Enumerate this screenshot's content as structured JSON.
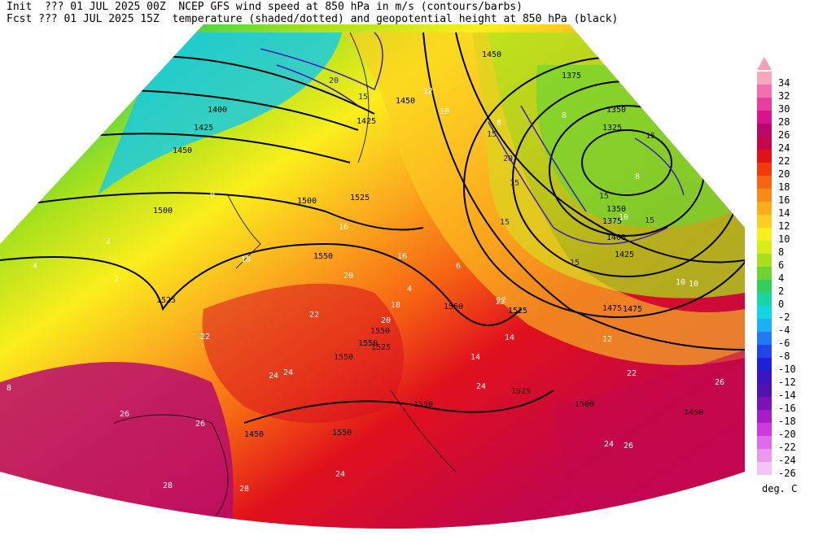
{
  "header": {
    "line1": "Init  ??? 01 JUL 2025 00Z  NCEP GFS wind speed at 850 hPa in m/s (contours/barbs)",
    "line2": "Fcst ??? 01 JUL 2025 15Z  temperature (shaded/dotted) and geopotential height at 850 hPa (black)"
  },
  "colorbar": {
    "units": "deg. C",
    "levels": [
      {
        "value": "34",
        "color": "#f7a8bd"
      },
      {
        "value": "32",
        "color": "#f26fb0"
      },
      {
        "value": "30",
        "color": "#e83e9e"
      },
      {
        "value": "28",
        "color": "#d8148a"
      },
      {
        "value": "26",
        "color": "#b90a6b"
      },
      {
        "value": "24",
        "color": "#c4064a"
      },
      {
        "value": "22",
        "color": "#e0101c"
      },
      {
        "value": "20",
        "color": "#f23a0a"
      },
      {
        "value": "18",
        "color": "#f76512"
      },
      {
        "value": "16",
        "color": "#fa8a18"
      },
      {
        "value": "14",
        "color": "#fbab1e"
      },
      {
        "value": "12",
        "color": "#fdcd22"
      },
      {
        "value": "10",
        "color": "#fbee1c"
      },
      {
        "value": "8",
        "color": "#d8ee1a"
      },
      {
        "value": "6",
        "color": "#a8e11c"
      },
      {
        "value": "4",
        "color": "#6fd431"
      },
      {
        "value": "2",
        "color": "#32d05a"
      },
      {
        "value": "0",
        "color": "#1ad6a5"
      },
      {
        "value": "-2",
        "color": "#12d7e2"
      },
      {
        "value": "-4",
        "color": "#1ab2f5"
      },
      {
        "value": "-6",
        "color": "#2179f4"
      },
      {
        "value": "-8",
        "color": "#1d46ed"
      },
      {
        "value": "-10",
        "color": "#2020d8"
      },
      {
        "value": "-12",
        "color": "#3a15c4"
      },
      {
        "value": "-14",
        "color": "#5212b0"
      },
      {
        "value": "-16",
        "color": "#7a12b5"
      },
      {
        "value": "-18",
        "color": "#a61dc6"
      },
      {
        "value": "-20",
        "color": "#cc3bde"
      },
      {
        "value": "-22",
        "color": "#e06ae9"
      },
      {
        "value": "-24",
        "color": "#ec98ef"
      },
      {
        "value": "-26",
        "color": "#f5c3f5"
      }
    ]
  },
  "map": {
    "height_labels": [
      {
        "text": "1400"
      },
      {
        "text": "1425"
      },
      {
        "text": "1450"
      },
      {
        "text": "1500"
      },
      {
        "text": "1525"
      },
      {
        "text": "1525"
      },
      {
        "text": "1550"
      },
      {
        "text": "1550"
      },
      {
        "text": "1550"
      },
      {
        "text": "1550"
      },
      {
        "text": "1525"
      },
      {
        "text": "1500"
      },
      {
        "text": "1475"
      },
      {
        "text": "1450"
      },
      {
        "text": "1450"
      },
      {
        "text": "1375"
      },
      {
        "text": "1350"
      },
      {
        "text": "1325"
      },
      {
        "text": "1375"
      },
      {
        "text": "1350"
      },
      {
        "text": "1400"
      },
      {
        "text": "1425"
      },
      {
        "text": "1450"
      },
      {
        "text": "1475"
      },
      {
        "text": "1525"
      },
      {
        "text": "1500"
      },
      {
        "text": "1550"
      },
      {
        "text": "1525"
      },
      {
        "text": "1550"
      },
      {
        "text": "1550"
      },
      {
        "text": "1450"
      },
      {
        "text": "1425"
      }
    ],
    "wind_labels": [
      {
        "text": "20"
      },
      {
        "text": "15"
      },
      {
        "text": "15"
      },
      {
        "text": "15"
      },
      {
        "text": "15"
      },
      {
        "text": "20"
      },
      {
        "text": "15"
      },
      {
        "text": "15"
      },
      {
        "text": "15"
      },
      {
        "text": "15"
      }
    ],
    "temp_labels": [
      {
        "text": "8"
      },
      {
        "text": "4"
      },
      {
        "text": "2"
      },
      {
        "text": "0"
      },
      {
        "text": "2"
      },
      {
        "text": "4"
      },
      {
        "text": "6"
      },
      {
        "text": "8"
      },
      {
        "text": "12"
      },
      {
        "text": "14"
      },
      {
        "text": "16"
      },
      {
        "text": "18"
      },
      {
        "text": "20"
      },
      {
        "text": "22"
      },
      {
        "text": "24"
      },
      {
        "text": "26"
      },
      {
        "text": "28"
      },
      {
        "text": "24"
      },
      {
        "text": "22"
      },
      {
        "text": "20"
      },
      {
        "text": "18"
      },
      {
        "text": "16"
      },
      {
        "text": "14"
      },
      {
        "text": "12"
      },
      {
        "text": "10"
      },
      {
        "text": "8"
      },
      {
        "text": "10"
      },
      {
        "text": "12"
      },
      {
        "text": "12"
      },
      {
        "text": "10"
      },
      {
        "text": "8"
      },
      {
        "text": "10"
      },
      {
        "text": "24"
      },
      {
        "text": "26"
      },
      {
        "text": "26"
      },
      {
        "text": "22"
      },
      {
        "text": "24"
      },
      {
        "text": "26"
      },
      {
        "text": "28"
      },
      {
        "text": "24"
      }
    ]
  }
}
